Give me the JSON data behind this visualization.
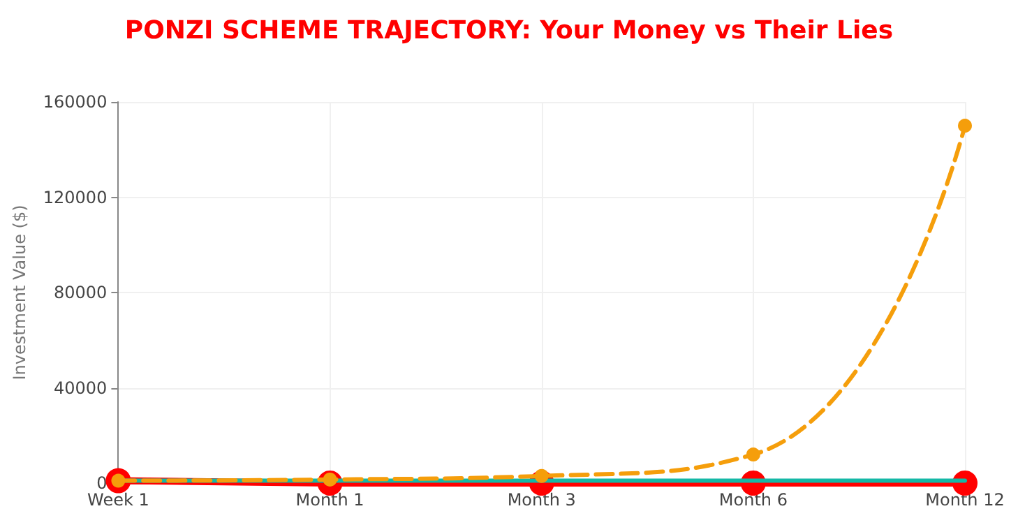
{
  "chart_data": {
    "type": "line",
    "title": "PONZI SCHEME TRAJECTORY: Your Money vs Their Lies",
    "ylabel": "Investment Value ($)",
    "categories": [
      "Week 1",
      "Month 1",
      "Month 3",
      "Month 6",
      "Month 12"
    ],
    "series": [
      {
        "color": "#f59e0b",
        "values": [
          1000,
          1500,
          3000,
          12000,
          150000
        ],
        "line_style": "dashed",
        "marker": "circle"
      },
      {
        "color": "#14b8a6",
        "values": [
          1000,
          1000,
          1000,
          1000,
          1000
        ],
        "line_style": "solid",
        "marker": "none"
      },
      {
        "color": "#ff0000",
        "values": [
          1000,
          0,
          0,
          0,
          0
        ],
        "line_style": "solid",
        "marker": "circle"
      }
    ],
    "ylim": [
      0,
      160000
    ],
    "yticks": [
      0,
      40000,
      80000,
      120000,
      160000
    ],
    "grid": true
  }
}
